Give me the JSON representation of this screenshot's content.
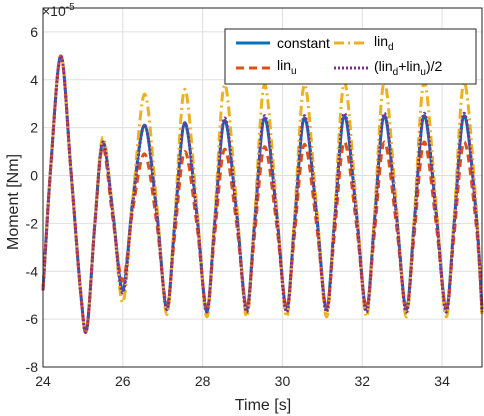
{
  "chart_data": {
    "type": "line",
    "xlabel": "Time [s]",
    "ylabel": "Moment [Nm]",
    "exponent_label": "×10",
    "exponent_power": "-5",
    "xlim": [
      24,
      35
    ],
    "ylim": [
      -8,
      7
    ],
    "xticks": [
      "24",
      "26",
      "28",
      "30",
      "32",
      "34"
    ],
    "yticks": [
      "-8",
      "-6",
      "-4",
      "-2",
      "0",
      "2",
      "4",
      "6"
    ],
    "grid": true,
    "legend_position": "top-right",
    "colors": {
      "constant": "#0072BD",
      "lin_d": "#EDB120",
      "lin_u": "#D95319",
      "avg": "#7E2F8E",
      "grid": "#dfdfdf",
      "axis": "#262626"
    },
    "series": [
      {
        "name": "constant",
        "key": "constant",
        "x": [
          24.0,
          24.2,
          24.45,
          24.7,
          24.95,
          25.1,
          25.3,
          25.5,
          25.75,
          26.0,
          26.25,
          26.55,
          26.85,
          27.1,
          27.3,
          27.55,
          27.85,
          28.1,
          28.3,
          28.55,
          28.85,
          29.1,
          29.3,
          29.55,
          29.85,
          30.1,
          30.3,
          30.55,
          30.85,
          31.1,
          31.3,
          31.55,
          31.85,
          32.1,
          32.3,
          32.55,
          32.85,
          33.1,
          33.3,
          33.55,
          33.85,
          34.1,
          34.3,
          34.55,
          34.85,
          35.0
        ],
        "y": [
          -4.8,
          0.5,
          5.0,
          0.2,
          -5.0,
          -6.4,
          -2.0,
          1.4,
          -1.5,
          -4.8,
          -1.0,
          2.1,
          -1.5,
          -5.6,
          -2.0,
          2.2,
          -1.5,
          -5.7,
          -2.0,
          2.3,
          -1.5,
          -5.6,
          -2.0,
          2.4,
          -1.5,
          -5.6,
          -2.0,
          2.4,
          -1.5,
          -5.6,
          -2.0,
          2.5,
          -1.5,
          -5.6,
          -2.0,
          2.5,
          -1.5,
          -5.6,
          -2.0,
          2.5,
          -1.5,
          -5.6,
          -2.0,
          2.5,
          -1.5,
          -5.6
        ]
      },
      {
        "name": "lin",
        "sub": "d",
        "key": "lin_d",
        "x": [
          24.0,
          24.2,
          24.45,
          24.7,
          24.95,
          25.1,
          25.3,
          25.5,
          25.75,
          26.0,
          26.25,
          26.55,
          26.85,
          27.1,
          27.3,
          27.55,
          27.85,
          28.1,
          28.3,
          28.55,
          28.85,
          29.1,
          29.3,
          29.55,
          29.85,
          30.1,
          30.3,
          30.55,
          30.85,
          31.1,
          31.3,
          31.55,
          31.85,
          32.1,
          32.3,
          32.55,
          32.85,
          33.1,
          33.3,
          33.55,
          33.85,
          34.1,
          34.3,
          34.55,
          34.85,
          35.0
        ],
        "y": [
          -4.8,
          0.5,
          5.0,
          0.2,
          -5.0,
          -6.4,
          -2.0,
          1.6,
          -1.5,
          -5.3,
          -1.0,
          3.4,
          -1.2,
          -5.8,
          -1.8,
          3.6,
          -1.2,
          -5.9,
          -1.8,
          3.8,
          -1.2,
          -5.9,
          -1.8,
          3.8,
          -1.2,
          -5.9,
          -1.8,
          3.8,
          -1.2,
          -5.9,
          -1.8,
          3.9,
          -1.2,
          -5.9,
          -1.8,
          3.9,
          -1.2,
          -5.9,
          -1.8,
          3.9,
          -1.2,
          -5.9,
          -1.8,
          3.9,
          -1.2,
          -5.9
        ]
      },
      {
        "name": "lin",
        "sub": "u",
        "key": "lin_u",
        "x": [
          24.0,
          24.2,
          24.45,
          24.7,
          24.95,
          25.1,
          25.3,
          25.5,
          25.75,
          26.0,
          26.25,
          26.55,
          26.85,
          27.1,
          27.3,
          27.55,
          27.85,
          28.1,
          28.3,
          28.55,
          28.85,
          29.1,
          29.3,
          29.55,
          29.85,
          30.1,
          30.3,
          30.55,
          30.85,
          31.1,
          31.3,
          31.55,
          31.85,
          32.1,
          32.3,
          32.55,
          32.85,
          33.1,
          33.3,
          33.55,
          33.85,
          34.1,
          34.3,
          34.55,
          34.85,
          35.0
        ],
        "y": [
          -4.8,
          0.5,
          5.0,
          0.2,
          -5.0,
          -6.4,
          -2.0,
          1.2,
          -1.8,
          -4.4,
          -1.4,
          0.9,
          -2.0,
          -5.4,
          -2.5,
          1.0,
          -2.0,
          -5.5,
          -2.5,
          1.1,
          -2.0,
          -5.5,
          -2.5,
          1.2,
          -2.0,
          -5.5,
          -2.5,
          1.3,
          -2.0,
          -5.5,
          -2.5,
          1.4,
          -2.0,
          -5.5,
          -2.5,
          1.4,
          -2.0,
          -5.5,
          -2.5,
          1.4,
          -2.0,
          -5.5,
          -2.5,
          1.4,
          -2.0,
          -5.5
        ]
      },
      {
        "name": "(lin",
        "key": "avg",
        "label_parts": [
          "(lin",
          "d",
          "+lin",
          "u",
          ")/2"
        ],
        "x": [
          24.0,
          24.2,
          24.45,
          24.7,
          24.95,
          25.1,
          25.3,
          25.5,
          25.75,
          26.0,
          26.25,
          26.55,
          26.85,
          27.1,
          27.3,
          27.55,
          27.85,
          28.1,
          28.3,
          28.55,
          28.85,
          29.1,
          29.3,
          29.55,
          29.85,
          30.1,
          30.3,
          30.55,
          30.85,
          31.1,
          31.3,
          31.55,
          31.85,
          32.1,
          32.3,
          32.55,
          32.85,
          33.1,
          33.3,
          33.55,
          33.85,
          34.1,
          34.3,
          34.55,
          34.85,
          35.0
        ],
        "y": [
          -4.8,
          0.5,
          5.0,
          0.2,
          -5.0,
          -6.4,
          -2.0,
          1.4,
          -1.6,
          -4.9,
          -1.2,
          2.1,
          -1.6,
          -5.6,
          -2.1,
          2.2,
          -1.6,
          -5.7,
          -2.1,
          2.4,
          -1.6,
          -5.7,
          -2.1,
          2.5,
          -1.6,
          -5.7,
          -2.1,
          2.5,
          -1.6,
          -5.7,
          -2.1,
          2.6,
          -1.6,
          -5.7,
          -2.1,
          2.6,
          -1.6,
          -5.7,
          -2.1,
          2.6,
          -1.6,
          -5.7,
          -2.1,
          2.6,
          -1.6,
          -5.7
        ]
      }
    ]
  }
}
